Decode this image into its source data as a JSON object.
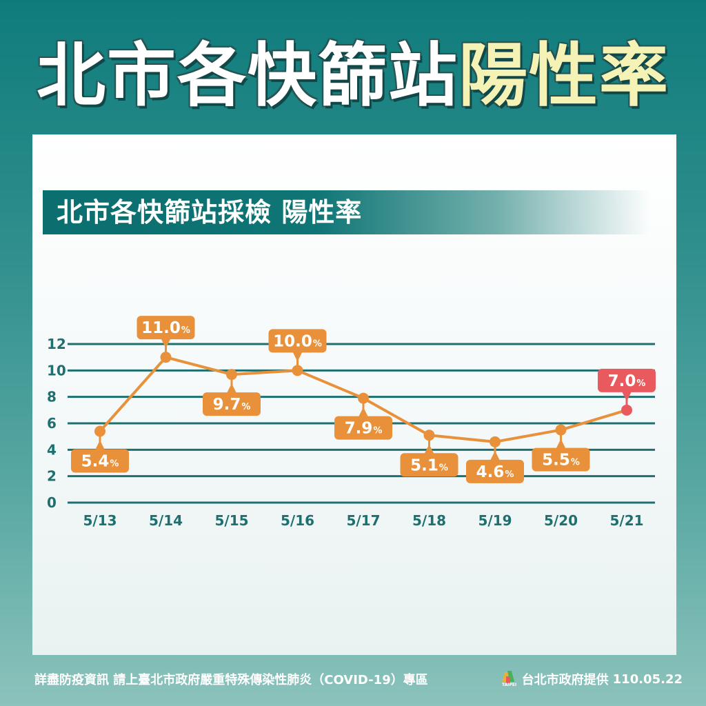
{
  "headline": {
    "part1": "北市各快篩站",
    "part2": "陽性率"
  },
  "subtitle": "北市各快篩站採檢 陽性率",
  "footer": {
    "left": "詳盡防疫資訊 請上臺北市政府嚴重特殊傳染性肺炎（COVID-19）專區",
    "logo_text": "TAIPEI",
    "provider": "台北市政府提供",
    "date": "110.05.22"
  },
  "colors": {
    "line": "#e8913a",
    "label_bg": "#e8913a",
    "highlight": "#e85a5e",
    "grid": "#1d6f70",
    "axis_text": "#1d6f70"
  },
  "chart_data": {
    "type": "line",
    "title": "北市各快篩站採檢 陽性率",
    "categories": [
      "5/13",
      "5/14",
      "5/15",
      "5/16",
      "5/17",
      "5/18",
      "5/19",
      "5/20",
      "5/21"
    ],
    "values": [
      5.4,
      11.0,
      9.7,
      10.0,
      7.9,
      5.1,
      4.6,
      5.5,
      7.0
    ],
    "labels": [
      "5.4",
      "11.0",
      "9.7",
      "10.0",
      "7.9",
      "5.1",
      "4.6",
      "5.5",
      "7.0"
    ],
    "unit": "%",
    "yticks": [
      0,
      2,
      4,
      6,
      8,
      10,
      12
    ],
    "ylim": [
      0,
      12
    ],
    "grid": true,
    "highlight_index": 8
  }
}
